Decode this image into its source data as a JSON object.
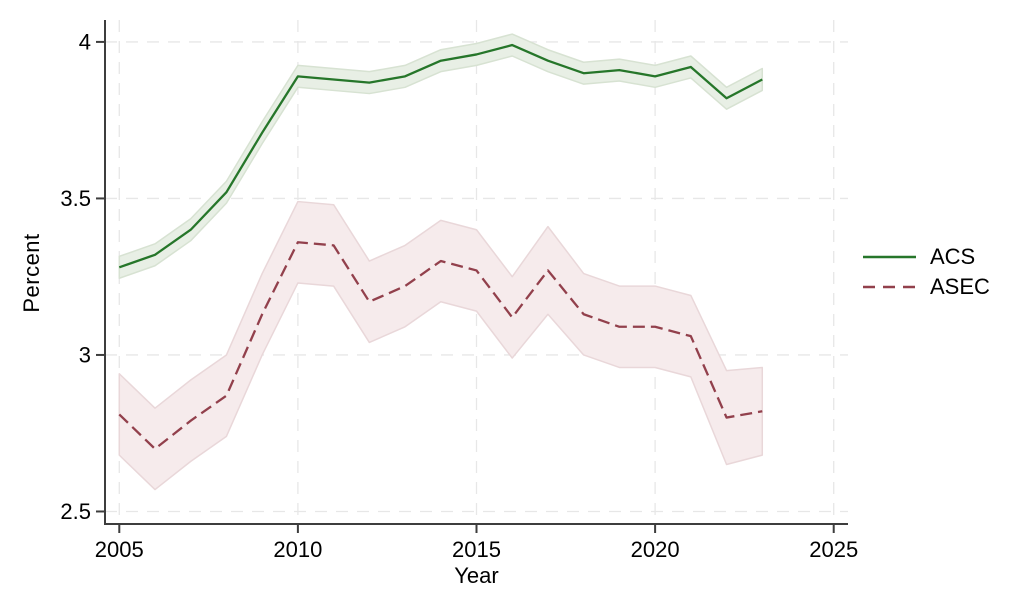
{
  "figure": {
    "background_color": "#ffffff",
    "axis_color": "#3d3d3d",
    "grid_color": "#e7e7e7",
    "text_color": "#000000"
  },
  "legend": {
    "items": [
      {
        "label": "ACS",
        "style": "solid",
        "color": "#26762a"
      },
      {
        "label": "ASEC",
        "style": "dashed",
        "color": "#92404c"
      }
    ]
  },
  "chart_data": {
    "type": "line",
    "title": "",
    "xlabel": "Year",
    "ylabel": "Percent",
    "x_ticks": [
      2005,
      2010,
      2015,
      2020,
      2025
    ],
    "y_ticks": [
      2.5,
      3,
      3.5,
      4
    ],
    "xlim": [
      2004.6,
      2025.4
    ],
    "ylim": [
      2.46,
      4.07
    ],
    "grid": "dashed, both axes, at ticks",
    "legend_position": "outside-right",
    "x": [
      2005,
      2006,
      2007,
      2008,
      2009,
      2010,
      2011,
      2012,
      2013,
      2014,
      2015,
      2016,
      2017,
      2018,
      2019,
      2020,
      2021,
      2022,
      2023
    ],
    "series": [
      {
        "name": "ACS",
        "line_style": "solid",
        "color": "#26762a",
        "band_fill": "#e8efe5",
        "band_edge": "#d7e2d2",
        "values": [
          3.28,
          3.32,
          3.4,
          3.52,
          3.71,
          3.89,
          3.88,
          3.87,
          3.89,
          3.94,
          3.96,
          3.99,
          3.94,
          3.9,
          3.91,
          3.89,
          3.92,
          3.82,
          3.88
        ],
        "ci_low": [
          3.245,
          3.285,
          3.365,
          3.485,
          3.675,
          3.855,
          3.845,
          3.835,
          3.855,
          3.905,
          3.925,
          3.955,
          3.905,
          3.865,
          3.875,
          3.855,
          3.885,
          3.785,
          3.845
        ],
        "ci_high": [
          3.315,
          3.355,
          3.435,
          3.555,
          3.745,
          3.925,
          3.915,
          3.905,
          3.925,
          3.975,
          3.995,
          4.025,
          3.975,
          3.935,
          3.945,
          3.925,
          3.955,
          3.855,
          3.915
        ]
      },
      {
        "name": "ASEC",
        "line_style": "dashed",
        "color": "#92404c",
        "band_fill": "#f6ebec",
        "band_edge": "#e9d7d9",
        "values": [
          2.81,
          2.7,
          2.79,
          2.87,
          3.13,
          3.36,
          3.35,
          3.17,
          3.22,
          3.3,
          3.27,
          3.12,
          3.27,
          3.13,
          3.09,
          3.09,
          3.06,
          2.8,
          2.82
        ],
        "ci_low": [
          2.68,
          2.57,
          2.66,
          2.74,
          3.0,
          3.23,
          3.22,
          3.04,
          3.09,
          3.17,
          3.14,
          2.99,
          3.13,
          3.0,
          2.96,
          2.96,
          2.93,
          2.65,
          2.68
        ],
        "ci_high": [
          2.94,
          2.83,
          2.92,
          3.0,
          3.26,
          3.49,
          3.48,
          3.3,
          3.35,
          3.43,
          3.4,
          3.25,
          3.41,
          3.26,
          3.22,
          3.22,
          3.19,
          2.95,
          2.96
        ]
      }
    ]
  }
}
